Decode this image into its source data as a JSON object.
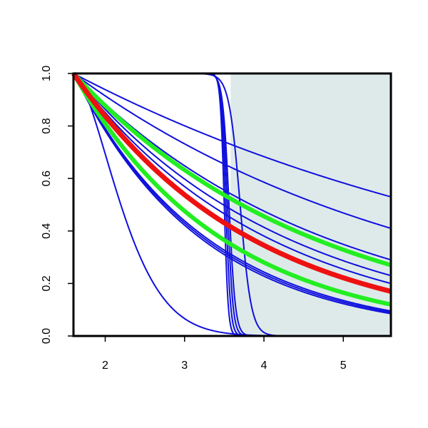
{
  "chart_data": {
    "type": "line",
    "title": "",
    "xlabel": "",
    "ylabel": "",
    "xlim": [
      1.6,
      5.6
    ],
    "ylim": [
      0.0,
      1.0
    ],
    "x_ticks": [
      2,
      3,
      4,
      5
    ],
    "x_tick_labels": [
      "2",
      "3",
      "4",
      "5"
    ],
    "y_ticks": [
      0.0,
      0.2,
      0.4,
      0.6,
      0.8,
      1.0
    ],
    "y_tick_labels": [
      "0.0",
      "0.2",
      "0.4",
      "0.6",
      "0.8",
      "1.0"
    ],
    "shaded_region": {
      "x": [
        3.58,
        5.6
      ],
      "color": "#deeaea"
    },
    "grid": false,
    "legend": "none",
    "x_start": 1.6,
    "series": [
      {
        "color": "#1010dd",
        "width": 2,
        "kind": "exp",
        "y_at_end": 0.53
      },
      {
        "color": "#1010dd",
        "width": 2,
        "kind": "exp",
        "y_at_end": 0.41
      },
      {
        "color": "#1010dd",
        "width": 2,
        "kind": "exp",
        "y_at_end": 0.29
      },
      {
        "color": "#1010dd",
        "width": 2,
        "kind": "exp",
        "y_at_end": 0.23
      },
      {
        "color": "#1010dd",
        "width": 2,
        "kind": "exp",
        "y_at_end": 0.2
      },
      {
        "color": "#1010dd",
        "width": 2,
        "kind": "exp",
        "y_at_end": 0.095
      },
      {
        "color": "#1010dd",
        "width": 2,
        "kind": "exp",
        "y_at_end": 0.09
      },
      {
        "color": "#1010dd",
        "width": 2,
        "kind": "exp",
        "y_at_end": 0.085
      },
      {
        "color": "#1010dd",
        "width": 2,
        "kind": "rational",
        "y_at": [
          2.5,
          0.4
        ],
        "x_at_half": 2.6
      },
      {
        "color": "#1010dd",
        "width": 2,
        "kind": "sigmoid",
        "center": 3.5,
        "scale": 0.025
      },
      {
        "color": "#1010dd",
        "width": 2,
        "kind": "sigmoid",
        "center": 3.52,
        "scale": 0.03
      },
      {
        "color": "#1010dd",
        "width": 2,
        "kind": "sigmoid",
        "center": 3.54,
        "scale": 0.035
      },
      {
        "color": "#1010dd",
        "width": 2,
        "kind": "sigmoid",
        "center": 3.56,
        "scale": 0.04
      },
      {
        "color": "#1010dd",
        "width": 2,
        "kind": "sigmoid",
        "center": 3.7,
        "scale": 0.07
      },
      {
        "color": "#22ee22",
        "width": 6,
        "kind": "exp",
        "y_at_end": 0.27
      },
      {
        "color": "#22ee22",
        "width": 6,
        "kind": "exp",
        "y_at_end": 0.12
      },
      {
        "color": "#ee1111",
        "width": 7,
        "kind": "exp",
        "y_at_end": 0.17
      }
    ]
  }
}
